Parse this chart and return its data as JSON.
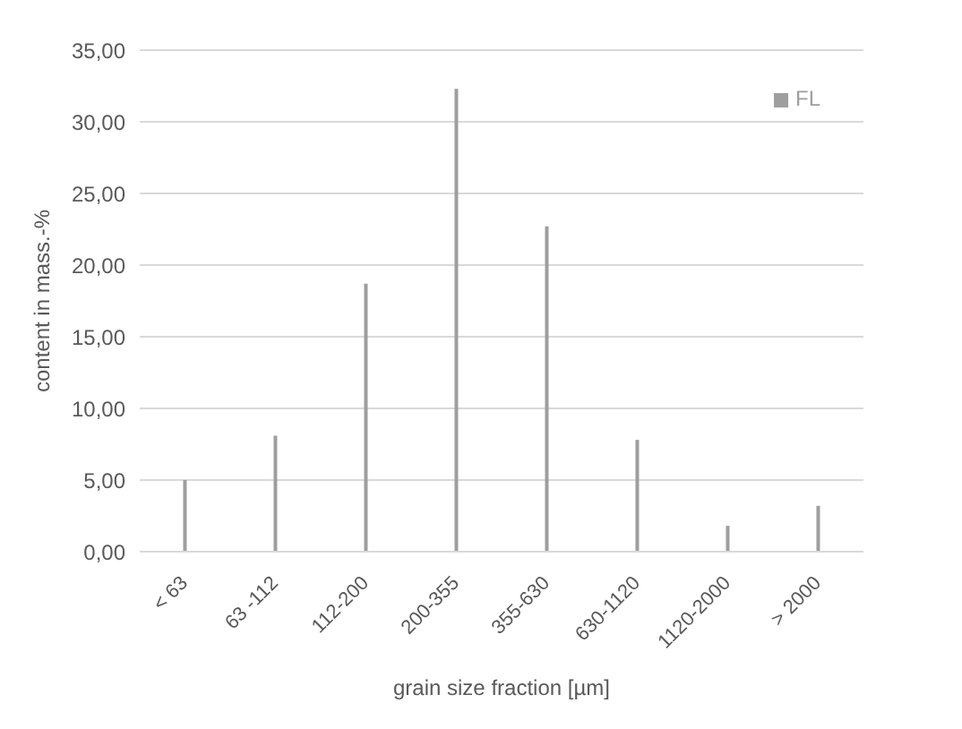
{
  "chart_data": {
    "type": "bar",
    "xlabel": "grain size fraction [µm]",
    "ylabel": "content in mass.-%",
    "categories": [
      "< 63",
      "63 -112",
      "112-200",
      "200-355",
      "355-630",
      "630-1120",
      "1120-2000",
      "> 2000"
    ],
    "series": [
      {
        "name": "FL",
        "color": "#9e9e9e",
        "values": [
          5.0,
          8.1,
          18.7,
          32.3,
          22.7,
          7.8,
          1.8,
          3.2
        ]
      }
    ],
    "ylim": [
      0,
      35
    ],
    "yticks": [
      {
        "value": 0,
        "label": "0,00"
      },
      {
        "value": 5,
        "label": "5,00"
      },
      {
        "value": 10,
        "label": "10,00"
      },
      {
        "value": 15,
        "label": "15,00"
      },
      {
        "value": 20,
        "label": "20,00"
      },
      {
        "value": 25,
        "label": "25,00"
      },
      {
        "value": 30,
        "label": "30,00"
      },
      {
        "value": 35,
        "label": "35,00"
      }
    ],
    "grid": "y",
    "legend": "top right"
  }
}
